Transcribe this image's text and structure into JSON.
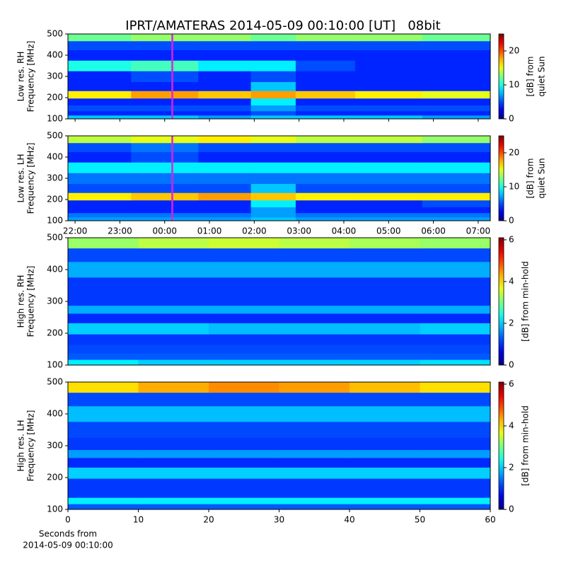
{
  "title": "IPRT/AMATERAS 2014-05-09 00:10:00 [UT]   08bit",
  "chart_data": [
    {
      "type": "heatmap",
      "ylabel": [
        "Low res. RH",
        "Frequency [MHz]"
      ],
      "sharex": true,
      "xlim": [
        21.84,
        31.27
      ],
      "ylim": [
        100,
        500
      ],
      "yticks": [
        100,
        200,
        300,
        400,
        500
      ],
      "vline": 24.17,
      "vline_color": "#e020e0",
      "x": [
        22.5,
        24.0,
        25.5,
        26.35,
        27.5,
        29.0,
        30.5
      ],
      "y": [
        110,
        125,
        150,
        180,
        215,
        250,
        300,
        352,
        400,
        450,
        485
      ],
      "values": [
        [
          8,
          8,
          7,
          8,
          8,
          8,
          7
        ],
        [
          4,
          4,
          4,
          5,
          4,
          4,
          4
        ],
        [
          5,
          5,
          5,
          7,
          5,
          5,
          5
        ],
        [
          4,
          4,
          4,
          9,
          4,
          4,
          4
        ],
        [
          16,
          18,
          17,
          18,
          17,
          16,
          15
        ],
        [
          4,
          4,
          4,
          8,
          4,
          4,
          4
        ],
        [
          4,
          5,
          4,
          5,
          4,
          4,
          4
        ],
        [
          10,
          11,
          9,
          9,
          5,
          4,
          4
        ],
        [
          4,
          4,
          4,
          4,
          4,
          4,
          4
        ],
        [
          5,
          5,
          5,
          5,
          5,
          5,
          5
        ],
        [
          12,
          13,
          13,
          12,
          13,
          13,
          12
        ]
      ],
      "vlim": [
        0,
        25
      ],
      "cticks": [
        0,
        10,
        20
      ],
      "clabel": [
        "[dB] from",
        "quiet Sun"
      ]
    },
    {
      "type": "heatmap",
      "ylabel": [
        "Low res. LH",
        "Frequency [MHz]"
      ],
      "xlim": [
        21.84,
        31.27
      ],
      "ylim": [
        100,
        500
      ],
      "yticks": [
        100,
        200,
        300,
        400,
        500
      ],
      "xticks": [
        {
          "value": 22,
          "label": "22:00"
        },
        {
          "value": 23,
          "label": "23:00"
        },
        {
          "value": 24,
          "label": "00:00"
        },
        {
          "value": 25,
          "label": "01:00"
        },
        {
          "value": 26,
          "label": "02:00"
        },
        {
          "value": 27,
          "label": "03:00"
        },
        {
          "value": 28,
          "label": "04:00"
        },
        {
          "value": 29,
          "label": "05:00"
        },
        {
          "value": 30,
          "label": "06:00"
        },
        {
          "value": 31,
          "label": "07:00"
        }
      ],
      "vline": 24.17,
      "vline_color": "#e020e0",
      "x": [
        22.5,
        24.0,
        25.5,
        26.35,
        27.5,
        29.0,
        30.5
      ],
      "y": [
        110,
        125,
        150,
        180,
        215,
        250,
        300,
        352,
        400,
        450,
        485
      ],
      "values": [
        [
          7,
          7,
          7,
          8,
          7,
          7,
          7
        ],
        [
          6,
          6,
          6,
          7,
          6,
          6,
          6
        ],
        [
          4,
          4,
          4,
          7,
          4,
          4,
          4
        ],
        [
          4,
          4,
          4,
          9,
          4,
          4,
          5
        ],
        [
          16,
          17,
          18,
          17,
          16,
          16,
          16
        ],
        [
          5,
          5,
          5,
          8,
          5,
          5,
          5
        ],
        [
          6,
          6,
          6,
          6,
          6,
          6,
          6
        ],
        [
          9,
          9,
          9,
          9,
          9,
          9,
          9
        ],
        [
          4,
          5,
          4,
          4,
          4,
          4,
          4
        ],
        [
          5,
          6,
          5,
          5,
          5,
          5,
          5
        ],
        [
          14,
          15,
          16,
          15,
          14,
          14,
          13
        ]
      ],
      "vlim": [
        0,
        25
      ],
      "cticks": [
        0,
        10,
        20
      ],
      "clabel": [
        "[dB] from",
        "quiet Sun"
      ]
    },
    {
      "type": "heatmap",
      "ylabel": [
        "High res. RH",
        "Frequency [MHz]"
      ],
      "xlim": [
        0,
        60
      ],
      "ylim": [
        100,
        500
      ],
      "yticks": [
        100,
        200,
        300,
        400,
        500
      ],
      "x": [
        5,
        15,
        25,
        35,
        45,
        55
      ],
      "y": [
        110,
        125,
        150,
        180,
        215,
        250,
        275,
        300,
        352,
        400,
        450,
        485
      ],
      "values": [
        [
          2.2,
          2.0,
          2.0,
          2.0,
          2.0,
          2.1
        ],
        [
          1.3,
          1.3,
          1.3,
          1.3,
          1.3,
          1.3
        ],
        [
          1.2,
          1.2,
          1.2,
          1.2,
          1.2,
          1.2
        ],
        [
          1.1,
          1.1,
          1.1,
          1.1,
          1.1,
          1.1
        ],
        [
          2.0,
          2.0,
          1.9,
          1.9,
          1.9,
          2.0
        ],
        [
          1.0,
          1.0,
          1.0,
          1.0,
          1.0,
          1.0
        ],
        [
          1.8,
          1.8,
          1.8,
          1.8,
          1.8,
          1.8
        ],
        [
          1.1,
          1.1,
          1.1,
          1.1,
          1.1,
          1.1
        ],
        [
          1.1,
          1.1,
          1.1,
          1.1,
          1.1,
          1.1
        ],
        [
          1.8,
          1.8,
          1.8,
          1.8,
          1.8,
          1.8
        ],
        [
          1.2,
          1.2,
          1.2,
          1.2,
          1.2,
          1.2
        ],
        [
          3.2,
          3.4,
          3.5,
          3.4,
          3.3,
          3.2
        ]
      ],
      "vlim": [
        0,
        6.1
      ],
      "cticks": [
        0,
        2,
        4,
        6
      ],
      "clabel": [
        "[dB] from min-hold"
      ]
    },
    {
      "type": "heatmap",
      "ylabel": [
        "High res. LH",
        "Frequency [MHz]"
      ],
      "xlim": [
        0,
        60
      ],
      "ylim": [
        100,
        500
      ],
      "yticks": [
        100,
        200,
        300,
        400,
        500
      ],
      "xticks": [
        0,
        10,
        20,
        30,
        40,
        50,
        60
      ],
      "xlabel": [
        "Seconds from",
        "2014-05-09 00:10:00"
      ],
      "x": [
        5,
        15,
        25,
        35,
        45,
        55
      ],
      "y": [
        110,
        125,
        150,
        180,
        215,
        250,
        275,
        300,
        352,
        400,
        450,
        485
      ],
      "values": [
        [
          1.3,
          1.3,
          1.3,
          1.3,
          1.3,
          1.3
        ],
        [
          2.2,
          2.2,
          2.2,
          2.2,
          2.2,
          2.2
        ],
        [
          1.1,
          1.1,
          1.1,
          1.1,
          1.1,
          1.1
        ],
        [
          1.1,
          1.1,
          1.1,
          1.1,
          1.1,
          1.1
        ],
        [
          2.0,
          2.0,
          2.0,
          2.0,
          2.0,
          2.0
        ],
        [
          1.0,
          1.0,
          1.0,
          1.0,
          1.0,
          1.0
        ],
        [
          1.7,
          1.7,
          1.7,
          1.7,
          1.7,
          1.7
        ],
        [
          1.1,
          1.1,
          1.1,
          1.1,
          1.1,
          1.1
        ],
        [
          1.2,
          1.2,
          1.2,
          1.2,
          1.2,
          1.2
        ],
        [
          1.9,
          1.9,
          1.9,
          1.9,
          1.9,
          1.9
        ],
        [
          1.2,
          1.2,
          1.2,
          1.2,
          1.2,
          1.2
        ],
        [
          4.0,
          4.3,
          4.5,
          4.4,
          4.2,
          4.0
        ]
      ],
      "vlim": [
        0,
        6.1
      ],
      "cticks": [
        0,
        2,
        4,
        6
      ],
      "clabel": [
        "[dB] from min-hold"
      ]
    }
  ]
}
